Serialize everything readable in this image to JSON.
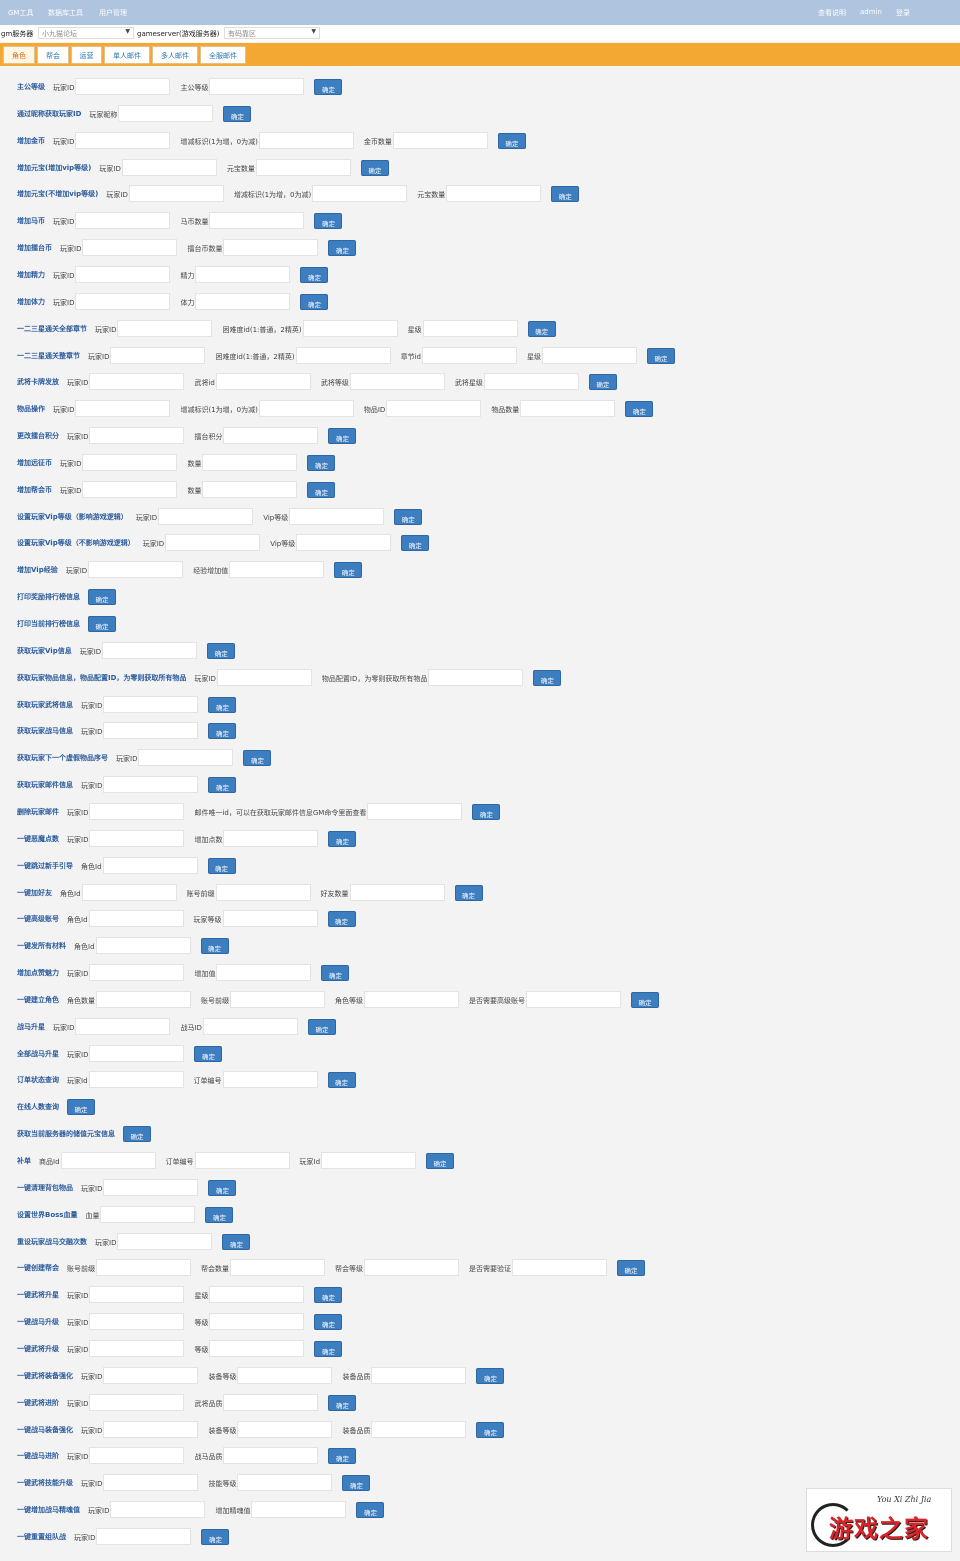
{
  "nav": {
    "left": [
      "GM工具",
      "数据库工具",
      "用户管理"
    ],
    "right": [
      "查看说明",
      "admin",
      "登录"
    ]
  },
  "server": {
    "gm_label": "gm服务器",
    "gm_value": "小九猫论坛",
    "game_label": "gameserver(游戏服务器)",
    "game_value": "有码靠区"
  },
  "tabs": [
    "角色",
    "帮会",
    "运营",
    "单人邮件",
    "多人邮件",
    "全服邮件"
  ],
  "confirm": "确定",
  "rows": [
    {
      "title": "主公等级",
      "fields": [
        "玩家ID",
        "主公等级"
      ]
    },
    {
      "title": "通过昵称获取玩家ID",
      "fields": [
        "玩家昵称"
      ]
    },
    {
      "title": "增加金币",
      "fields": [
        "玩家ID",
        "增减标识(1为增，0为减)",
        "金币数量"
      ]
    },
    {
      "title": "增加元宝(增加vip等级)",
      "fields": [
        "玩家ID",
        "元宝数量"
      ]
    },
    {
      "title": "增加元宝(不增加vip等级)",
      "fields": [
        "玩家ID",
        "增减标识(1为增，0为减)",
        "元宝数量"
      ]
    },
    {
      "title": "增加马币",
      "fields": [
        "玩家ID",
        "马币数量"
      ]
    },
    {
      "title": "增加擂台币",
      "fields": [
        "玩家ID",
        "擂台币数量"
      ]
    },
    {
      "title": "增加精力",
      "fields": [
        "玩家ID",
        "精力"
      ]
    },
    {
      "title": "增加体力",
      "fields": [
        "玩家ID",
        "体力"
      ]
    },
    {
      "title": "一二三星通关全部章节",
      "fields": [
        "玩家ID",
        "困难度id(1:普通，2精英)",
        "星级"
      ]
    },
    {
      "title": "一二三星通关整章节",
      "fields": [
        "玩家ID",
        "困难度id(1:普通，2精英)",
        "章节id",
        "星级"
      ]
    },
    {
      "title": "武将卡牌发放",
      "fields": [
        "玩家ID",
        "武将id",
        "武将等级",
        "武将星级"
      ]
    },
    {
      "title": "物品操作",
      "fields": [
        "玩家ID",
        "增减标识(1为增，0为减)",
        "物品ID",
        "物品数量"
      ]
    },
    {
      "title": "更改擂台积分",
      "fields": [
        "玩家ID",
        "擂台积分"
      ]
    },
    {
      "title": "增加远征币",
      "fields": [
        "玩家ID",
        "数量"
      ]
    },
    {
      "title": "增加帮会币",
      "fields": [
        "玩家ID",
        "数量"
      ]
    },
    {
      "title": "设置玩家Vip等级（影响游戏逻辑）",
      "fields": [
        "玩家ID",
        "Vip等级"
      ]
    },
    {
      "title": "设置玩家Vip等级（不影响游戏逻辑）",
      "fields": [
        "玩家ID",
        "Vip等级"
      ]
    },
    {
      "title": "增加Vip经验",
      "fields": [
        "玩家ID",
        "经验增加值"
      ]
    },
    {
      "title": "打印奖励排行榜信息",
      "fields": []
    },
    {
      "title": "打印当前排行榜信息",
      "fields": []
    },
    {
      "title": "获取玩家Vip信息",
      "fields": [
        "玩家ID"
      ]
    },
    {
      "title": "获取玩家物品信息，物品配置ID，为零则获取所有物品",
      "fields": [
        "玩家ID",
        "物品配置ID，为零则获取所有物品"
      ]
    },
    {
      "title": "获取玩家武将信息",
      "fields": [
        "玩家ID"
      ]
    },
    {
      "title": "获取玩家战马信息",
      "fields": [
        "玩家ID"
      ]
    },
    {
      "title": "获取玩家下一个虚假物品序号",
      "fields": [
        "玩家ID"
      ]
    },
    {
      "title": "获取玩家邮件信息",
      "fields": [
        "玩家ID"
      ]
    },
    {
      "title": "删除玩家邮件",
      "fields": [
        "玩家ID",
        "邮件唯一id，可以在获取玩家邮件信息GM命令里面查看"
      ]
    },
    {
      "title": "一键恶魔点数",
      "fields": [
        "玩家ID",
        "增加点数"
      ]
    },
    {
      "title": "一键跳过新手引导",
      "fields": [
        "角色Id"
      ]
    },
    {
      "title": "一键加好友",
      "fields": [
        "角色Id",
        "账号前缀",
        "好友数量"
      ]
    },
    {
      "title": "一键高级账号",
      "fields": [
        "角色Id",
        "玩家等级"
      ]
    },
    {
      "title": "一键发所有材料",
      "fields": [
        "角色Id"
      ]
    },
    {
      "title": "增加点赞魅力",
      "fields": [
        "玩家ID",
        "增加值"
      ]
    },
    {
      "title": "一键建立角色",
      "fields": [
        "角色数量",
        "账号前缀",
        "角色等级",
        "是否需要高级账号"
      ]
    },
    {
      "title": "战马升星",
      "fields": [
        "玩家ID",
        "战马ID"
      ]
    },
    {
      "title": "全部战马升星",
      "fields": [
        "玩家ID"
      ]
    },
    {
      "title": "订单状态查询",
      "fields": [
        "玩家Id",
        "订单编号"
      ]
    },
    {
      "title": "在线人数查询",
      "fields": []
    },
    {
      "title": "获取当前服务器的储值元宝信息",
      "fields": []
    },
    {
      "title": "补单",
      "fields": [
        "商品Id",
        "订单编号",
        "玩家Id"
      ]
    },
    {
      "title": "一键清理背包物品",
      "fields": [
        "玩家ID"
      ]
    },
    {
      "title": "设置世界Boss血量",
      "fields": [
        "血量"
      ]
    },
    {
      "title": "重设玩家战马交融次数",
      "fields": [
        "玩家ID"
      ]
    },
    {
      "title": "一键创建帮会",
      "fields": [
        "账号前缀",
        "帮会数量",
        "帮会等级",
        "是否需要验证"
      ]
    },
    {
      "title": "一键武将升星",
      "fields": [
        "玩家ID",
        "星级"
      ]
    },
    {
      "title": "一键战马升级",
      "fields": [
        "玩家ID",
        "等级"
      ]
    },
    {
      "title": "一键武将升级",
      "fields": [
        "玩家ID",
        "等级"
      ]
    },
    {
      "title": "一键武将装备强化",
      "fields": [
        "玩家ID",
        "装备等级",
        "装备品质"
      ]
    },
    {
      "title": "一键武将进阶",
      "fields": [
        "玩家ID",
        "武将品质"
      ]
    },
    {
      "title": "一键战马装备强化",
      "fields": [
        "玩家ID",
        "装备等级",
        "装备品质"
      ]
    },
    {
      "title": "一键战马进阶",
      "fields": [
        "玩家ID",
        "战马品质"
      ]
    },
    {
      "title": "一键武将技能升级",
      "fields": [
        "玩家ID",
        "技能等级"
      ]
    },
    {
      "title": "一键增加战马精魂值",
      "fields": [
        "玩家ID",
        "增加精魂值"
      ]
    },
    {
      "title": "一键重置组队战",
      "fields": [
        "玩家ID"
      ]
    }
  ],
  "watermark": {
    "sub": "You Xi Zhi Jia",
    "main": "游戏之家"
  }
}
